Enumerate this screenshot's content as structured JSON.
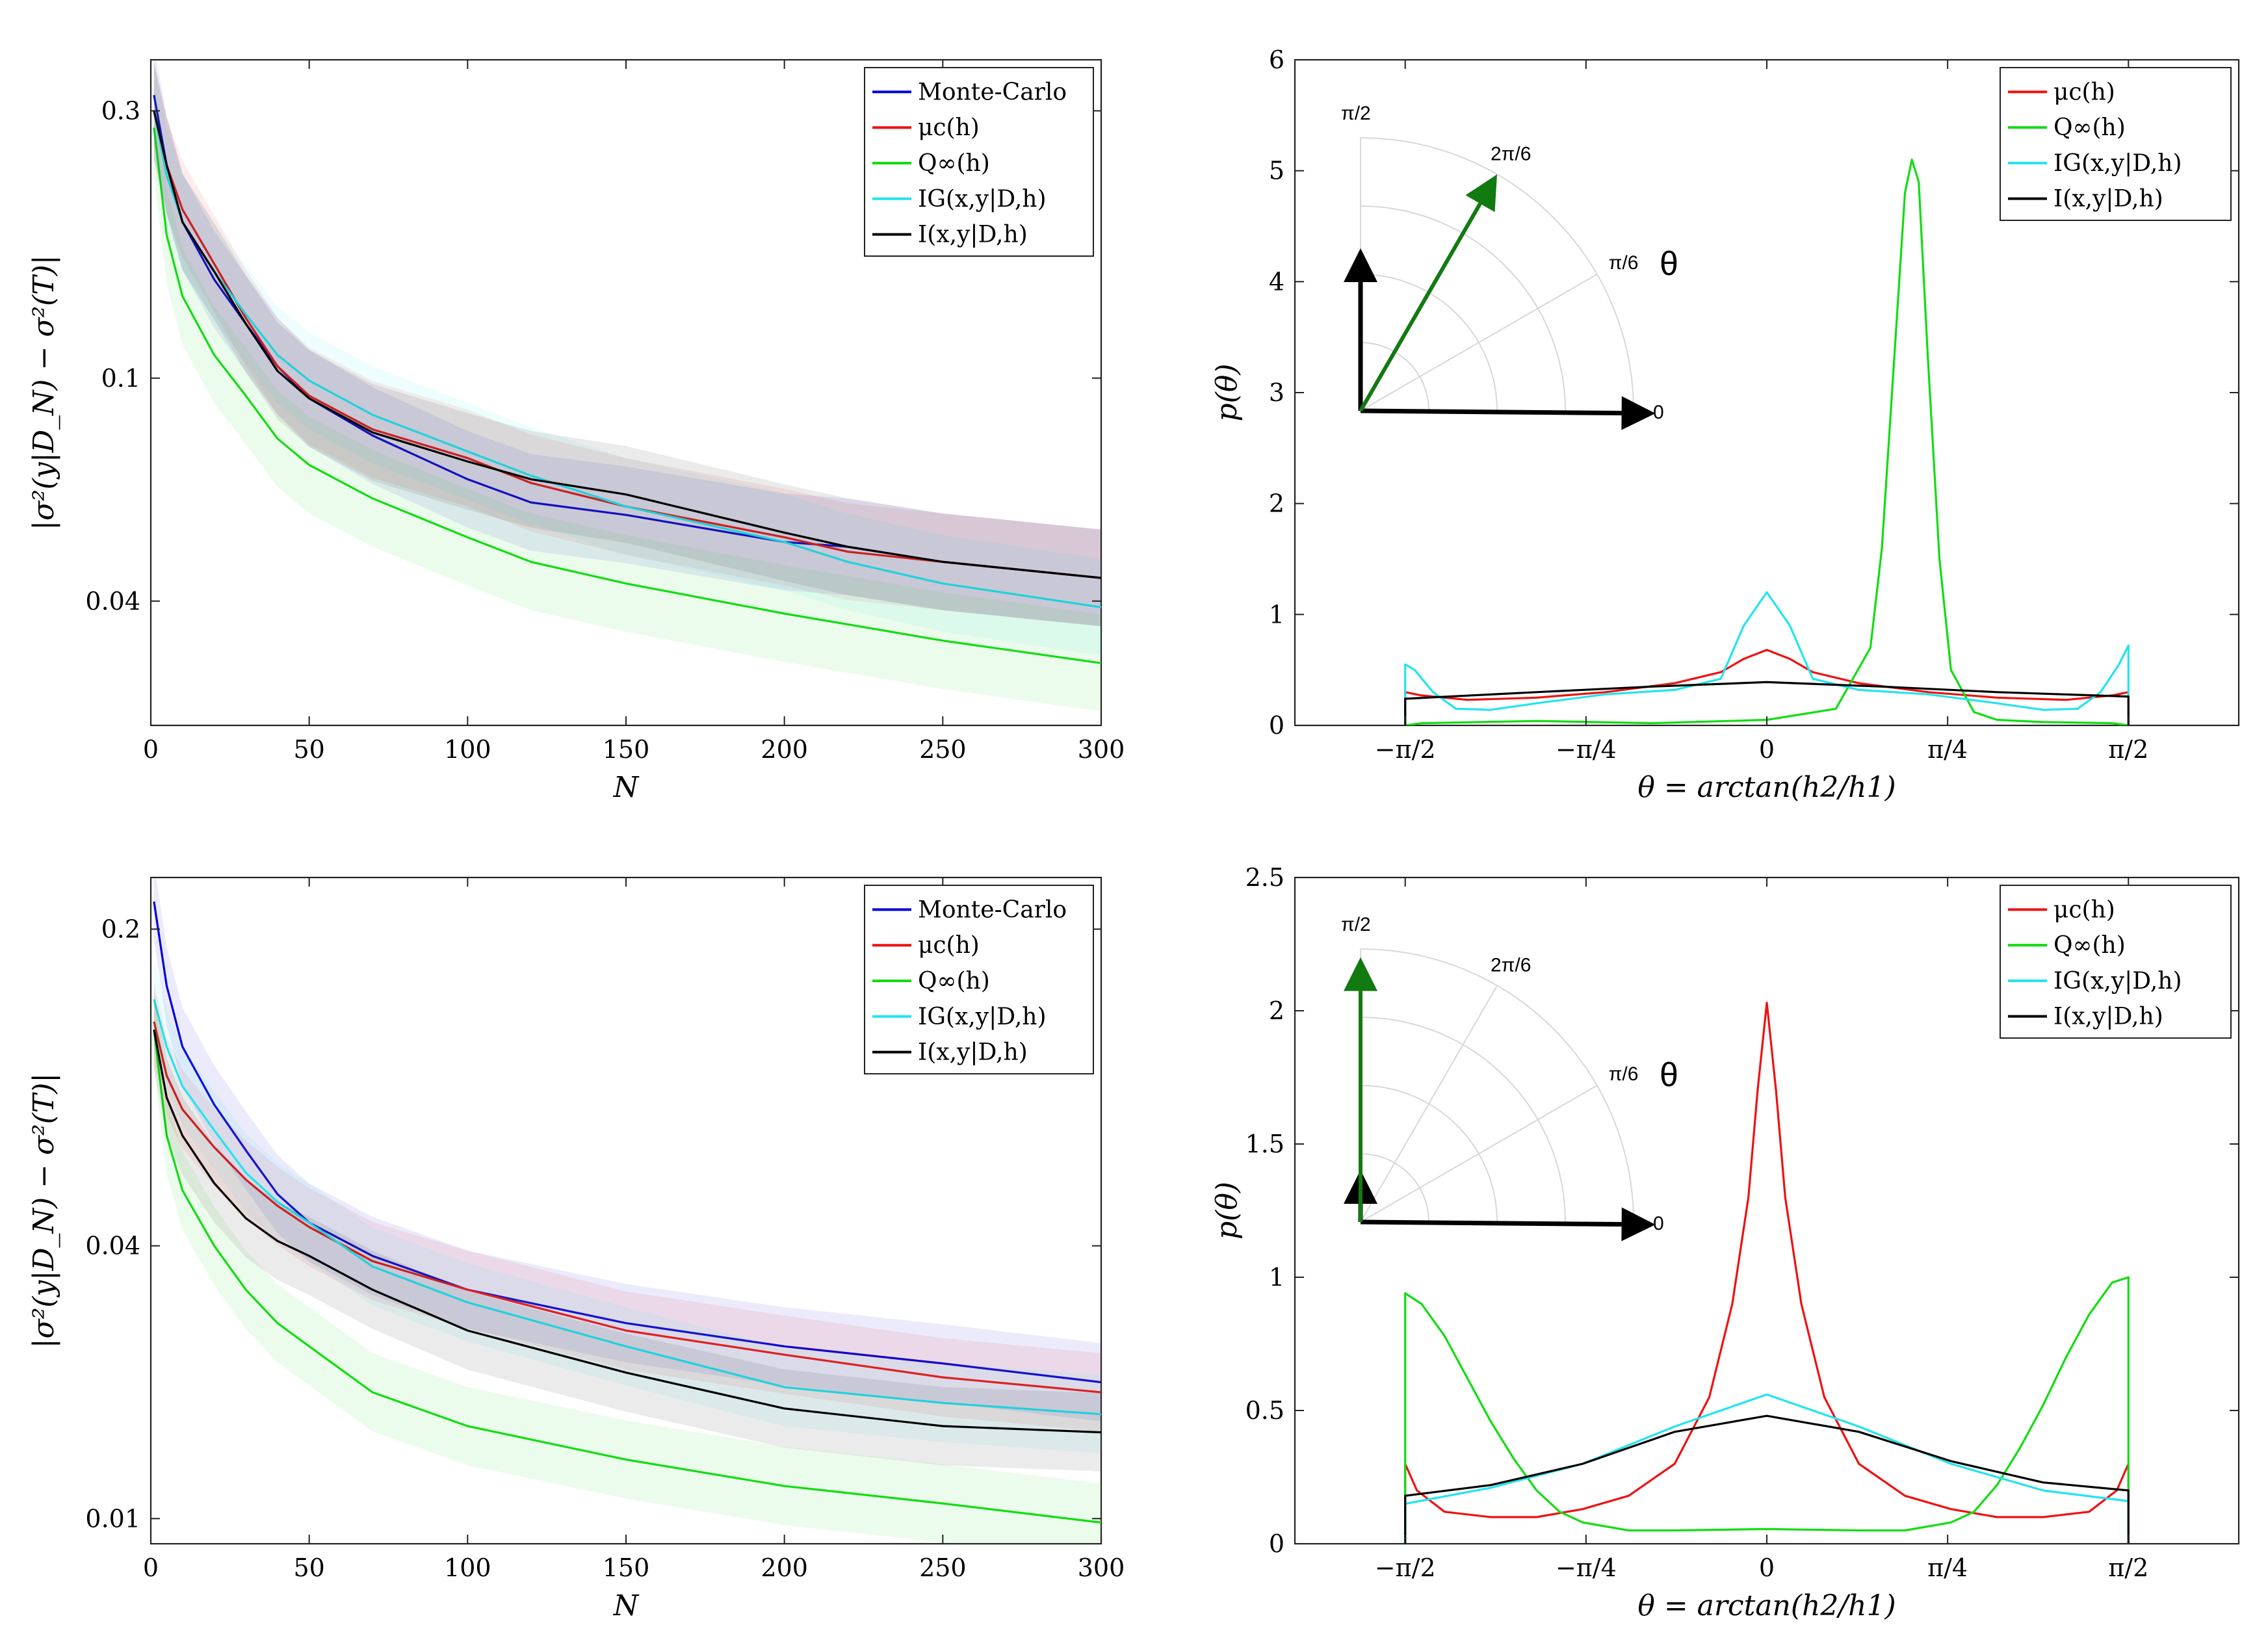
{
  "chart_data": [
    {
      "id": "top-left",
      "type": "line",
      "yscale": "log",
      "xlabel": "N",
      "ylabel": "|σ²(y|D_N) − σ²(T)|",
      "xlim": [
        0,
        300
      ],
      "ylim": [
        0.024,
        0.37
      ],
      "xticks": [
        0,
        50,
        100,
        150,
        200,
        250,
        300
      ],
      "xtick_labels": [
        "0",
        "50",
        "100",
        "150",
        "200",
        "250",
        "300"
      ],
      "yticks": [
        0.04,
        0.1,
        0.3
      ],
      "ytick_labels": [
        "0.04",
        "0.1",
        "0.3"
      ],
      "legend": [
        "Monte-Carlo",
        "μc(h)",
        "Q∞(h)",
        "IG(x,y|D,h)",
        "I(x,y|D,h)"
      ],
      "series": [
        {
          "name": "Monte-Carlo",
          "color": "#0000dd",
          "x": [
            1,
            5,
            10,
            20,
            30,
            40,
            50,
            70,
            100,
            120,
            150,
            200,
            220,
            250,
            300
          ],
          "values": [
            0.32,
            0.24,
            0.19,
            0.15,
            0.125,
            0.105,
            0.092,
            0.079,
            0.066,
            0.06,
            0.057,
            0.051,
            0.05,
            0.047,
            0.044
          ]
        },
        {
          "name": "μc(h)",
          "color": "#ee1111",
          "x": [
            1,
            5,
            10,
            20,
            30,
            40,
            50,
            70,
            100,
            120,
            150,
            200,
            220,
            250,
            300
          ],
          "values": [
            0.3,
            0.24,
            0.2,
            0.16,
            0.128,
            0.105,
            0.093,
            0.081,
            0.072,
            0.065,
            0.059,
            0.052,
            0.049,
            0.047,
            0.044
          ]
        },
        {
          "name": "Q∞(h)",
          "color": "#11dd11",
          "x": [
            1,
            5,
            10,
            20,
            30,
            40,
            50,
            70,
            100,
            120,
            150,
            200,
            250,
            300
          ],
          "values": [
            0.28,
            0.18,
            0.14,
            0.11,
            0.093,
            0.078,
            0.07,
            0.061,
            0.052,
            0.047,
            0.043,
            0.038,
            0.034,
            0.031
          ]
        },
        {
          "name": "IG(x,y|D,h)",
          "color": "#22e4ee",
          "x": [
            1,
            5,
            10,
            20,
            30,
            40,
            50,
            70,
            100,
            120,
            150,
            200,
            220,
            250,
            300
          ],
          "values": [
            0.3,
            0.23,
            0.19,
            0.155,
            0.13,
            0.11,
            0.099,
            0.086,
            0.074,
            0.067,
            0.059,
            0.051,
            0.047,
            0.043,
            0.039
          ]
        },
        {
          "name": "I(x,y|D,h)",
          "color": "#000000",
          "x": [
            1,
            5,
            10,
            20,
            30,
            40,
            50,
            70,
            100,
            120,
            150,
            200,
            220,
            250,
            300
          ],
          "values": [
            0.3,
            0.24,
            0.19,
            0.155,
            0.125,
            0.103,
            0.092,
            0.08,
            0.071,
            0.066,
            0.062,
            0.053,
            0.05,
            0.047,
            0.044
          ]
        }
      ]
    },
    {
      "id": "top-right",
      "type": "line",
      "xlabel": "θ = arctan(h2/h1)",
      "ylabel": "p(θ)",
      "xlim": [
        -2.05,
        2.05
      ],
      "ylim": [
        0,
        6
      ],
      "xticks": [
        -1.5708,
        -0.7854,
        0,
        0.7854,
        1.5708
      ],
      "xtick_labels": [
        "−π/2",
        "−π/4",
        "0",
        "π/4",
        "π/2"
      ],
      "yticks": [
        0,
        1,
        2,
        3,
        4,
        5,
        6
      ],
      "ytick_labels": [
        "0",
        "1",
        "2",
        "3",
        "4",
        "5",
        "6"
      ],
      "legend": [
        "μc(h)",
        "Q∞(h)",
        "IG(x,y|D,h)",
        "I(x,y|D,h)"
      ],
      "series": [
        {
          "name": "μc(h)",
          "color": "#ee1111",
          "x": [
            -1.5708,
            -1.5708,
            -1.5,
            -1.3,
            -1.0,
            -0.7,
            -0.4,
            -0.2,
            -0.1,
            0,
            0.1,
            0.2,
            0.4,
            0.7,
            1.0,
            1.3,
            1.5,
            1.5708,
            1.5708
          ],
          "values": [
            0,
            0.3,
            0.27,
            0.23,
            0.25,
            0.3,
            0.38,
            0.48,
            0.6,
            0.68,
            0.6,
            0.48,
            0.38,
            0.3,
            0.25,
            0.23,
            0.27,
            0.3,
            0
          ]
        },
        {
          "name": "Q∞(h)",
          "color": "#11dd11",
          "x": [
            -1.5708,
            -1.5,
            -1.0,
            -0.5,
            0,
            0.3,
            0.45,
            0.5,
            0.55,
            0.6,
            0.63,
            0.66,
            0.7,
            0.75,
            0.8,
            0.9,
            1.0,
            1.2,
            1.5,
            1.5708
          ],
          "values": [
            0,
            0.02,
            0.04,
            0.02,
            0.05,
            0.15,
            0.7,
            1.6,
            3.2,
            4.8,
            5.1,
            4.9,
            3.3,
            1.5,
            0.5,
            0.12,
            0.05,
            0.03,
            0.02,
            0
          ]
        },
        {
          "name": "IG(x,y|D,h)",
          "color": "#22e4ee",
          "x": [
            -1.5708,
            -1.5708,
            -1.53,
            -1.45,
            -1.35,
            -1.2,
            -1.0,
            -0.7,
            -0.4,
            -0.2,
            -0.1,
            0,
            0.1,
            0.2,
            0.4,
            0.7,
            1.0,
            1.2,
            1.35,
            1.45,
            1.53,
            1.5708,
            1.5708
          ],
          "values": [
            0,
            0.55,
            0.5,
            0.3,
            0.15,
            0.14,
            0.2,
            0.28,
            0.32,
            0.42,
            0.9,
            1.2,
            0.9,
            0.42,
            0.32,
            0.28,
            0.2,
            0.14,
            0.15,
            0.3,
            0.55,
            0.72,
            0
          ]
        },
        {
          "name": "I(x,y|D,h)",
          "color": "#000000",
          "x": [
            -1.5708,
            -1.5708,
            -1.0,
            -0.5,
            0,
            0.5,
            1.0,
            1.5708,
            1.5708
          ],
          "values": [
            0,
            0.24,
            0.3,
            0.35,
            0.39,
            0.35,
            0.3,
            0.26,
            0
          ]
        }
      ],
      "inset": {
        "type": "polar-quadrant",
        "angle_labels": [
          "0",
          "π/6",
          "2π/6",
          "π/2"
        ],
        "theta_label": "θ",
        "arrow_angle_label": "2π/6"
      }
    },
    {
      "id": "bottom-left",
      "type": "line",
      "yscale": "log",
      "xlabel": "N",
      "ylabel": "|σ²(y|D_N) − σ²(T)|",
      "xlim": [
        0,
        300
      ],
      "ylim": [
        0.0088,
        0.26
      ],
      "xticks": [
        0,
        50,
        100,
        150,
        200,
        250,
        300
      ],
      "xtick_labels": [
        "0",
        "50",
        "100",
        "150",
        "200",
        "250",
        "300"
      ],
      "yticks": [
        0.01,
        0.04,
        0.2
      ],
      "ytick_labels": [
        "0.01",
        "0.04",
        "0.2"
      ],
      "legend": [
        "Monte-Carlo",
        "μc(h)",
        "Q∞(h)",
        "IG(x,y|D,h)",
        "I(x,y|D,h)"
      ],
      "series": [
        {
          "name": "Monte-Carlo",
          "color": "#0000dd",
          "x": [
            1,
            5,
            10,
            20,
            30,
            40,
            50,
            70,
            100,
            150,
            200,
            250,
            300
          ],
          "values": [
            0.23,
            0.15,
            0.11,
            0.082,
            0.065,
            0.052,
            0.045,
            0.038,
            0.032,
            0.027,
            0.024,
            0.022,
            0.02
          ]
        },
        {
          "name": "μc(h)",
          "color": "#ee1111",
          "x": [
            1,
            5,
            10,
            20,
            30,
            40,
            50,
            70,
            100,
            150,
            200,
            250,
            300
          ],
          "values": [
            0.125,
            0.095,
            0.08,
            0.066,
            0.056,
            0.049,
            0.044,
            0.037,
            0.032,
            0.026,
            0.023,
            0.0205,
            0.019
          ]
        },
        {
          "name": "Q∞(h)",
          "color": "#11dd11",
          "x": [
            1,
            5,
            10,
            20,
            30,
            40,
            50,
            70,
            100,
            150,
            200,
            250,
            300
          ],
          "values": [
            0.12,
            0.07,
            0.053,
            0.04,
            0.032,
            0.027,
            0.024,
            0.019,
            0.016,
            0.0135,
            0.0118,
            0.0108,
            0.0098
          ]
        },
        {
          "name": "IG(x,y|D,h)",
          "color": "#22e4ee",
          "x": [
            1,
            5,
            10,
            20,
            30,
            40,
            50,
            70,
            100,
            150,
            200,
            250,
            300
          ],
          "values": [
            0.14,
            0.11,
            0.09,
            0.072,
            0.058,
            0.05,
            0.045,
            0.036,
            0.03,
            0.024,
            0.0195,
            0.018,
            0.017
          ]
        },
        {
          "name": "I(x,y|D,h)",
          "color": "#000000",
          "x": [
            1,
            5,
            10,
            20,
            30,
            40,
            50,
            70,
            100,
            150,
            200,
            250,
            300
          ],
          "values": [
            0.12,
            0.085,
            0.07,
            0.055,
            0.046,
            0.041,
            0.038,
            0.032,
            0.026,
            0.021,
            0.0175,
            0.016,
            0.0155
          ]
        }
      ]
    },
    {
      "id": "bottom-right",
      "type": "line",
      "xlabel": "θ = arctan(h2/h1)",
      "ylabel": "p(θ)",
      "xlim": [
        -2.05,
        2.05
      ],
      "ylim": [
        0,
        2.5
      ],
      "xticks": [
        -1.5708,
        -0.7854,
        0,
        0.7854,
        1.5708
      ],
      "xtick_labels": [
        "−π/2",
        "−π/4",
        "0",
        "π/4",
        "π/2"
      ],
      "yticks": [
        0,
        0.5,
        1,
        1.5,
        2,
        2.5
      ],
      "ytick_labels": [
        "0",
        "0.5",
        "1",
        "1.5",
        "2",
        "2.5"
      ],
      "legend": [
        "μc(h)",
        "Q∞(h)",
        "IG(x,y|D,h)",
        "I(x,y|D,h)"
      ],
      "series": [
        {
          "name": "μc(h)",
          "color": "#ee1111",
          "x": [
            -1.5708,
            -1.5708,
            -1.52,
            -1.4,
            -1.2,
            -1.0,
            -0.8,
            -0.6,
            -0.4,
            -0.25,
            -0.15,
            -0.08,
            -0.04,
            0,
            0.04,
            0.08,
            0.15,
            0.25,
            0.4,
            0.6,
            0.8,
            1.0,
            1.2,
            1.4,
            1.52,
            1.5708,
            1.5708
          ],
          "values": [
            0,
            0.3,
            0.2,
            0.12,
            0.1,
            0.1,
            0.13,
            0.18,
            0.3,
            0.55,
            0.9,
            1.3,
            1.7,
            2.03,
            1.7,
            1.3,
            0.9,
            0.55,
            0.3,
            0.18,
            0.13,
            0.1,
            0.1,
            0.12,
            0.2,
            0.3,
            0
          ]
        },
        {
          "name": "Q∞(h)",
          "color": "#11dd11",
          "x": [
            -1.5708,
            -1.5708,
            -1.5,
            -1.4,
            -1.3,
            -1.2,
            -1.1,
            -1.0,
            -0.9,
            -0.8,
            -0.6,
            -0.4,
            0,
            0.4,
            0.6,
            0.8,
            0.9,
            1.0,
            1.1,
            1.2,
            1.3,
            1.4,
            1.5,
            1.5708,
            1.5708
          ],
          "values": [
            0,
            0.94,
            0.9,
            0.78,
            0.62,
            0.46,
            0.32,
            0.2,
            0.12,
            0.08,
            0.05,
            0.05,
            0.055,
            0.05,
            0.05,
            0.08,
            0.12,
            0.22,
            0.36,
            0.52,
            0.7,
            0.86,
            0.98,
            1.0,
            0
          ]
        },
        {
          "name": "IG(x,y|D,h)",
          "color": "#22e4ee",
          "x": [
            -1.5708,
            -1.5708,
            -1.2,
            -0.8,
            -0.4,
            0,
            0.4,
            0.8,
            1.2,
            1.5708,
            1.5708
          ],
          "values": [
            0,
            0.15,
            0.21,
            0.3,
            0.44,
            0.56,
            0.44,
            0.3,
            0.2,
            0.16,
            0
          ]
        },
        {
          "name": "I(x,y|D,h)",
          "color": "#000000",
          "x": [
            -1.5708,
            -1.5708,
            -1.2,
            -0.8,
            -0.4,
            0,
            0.4,
            0.8,
            1.2,
            1.5708,
            1.5708
          ],
          "values": [
            0,
            0.18,
            0.22,
            0.3,
            0.42,
            0.48,
            0.42,
            0.31,
            0.23,
            0.2,
            0
          ]
        }
      ],
      "inset": {
        "type": "polar-quadrant",
        "angle_labels": [
          "0",
          "π/6",
          "2π/6",
          "π/2"
        ],
        "theta_label": "θ",
        "arrow_angle_label": "π/2"
      }
    }
  ]
}
